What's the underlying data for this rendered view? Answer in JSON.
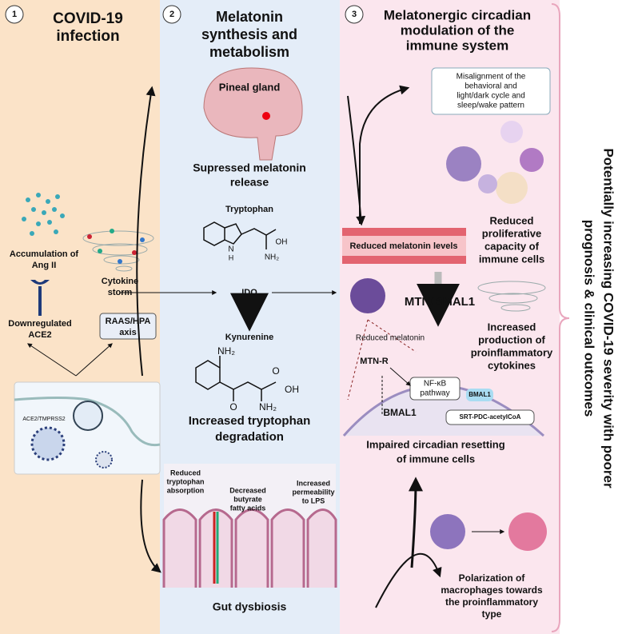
{
  "panel1": {
    "number": "1",
    "title": [
      "COVID-19",
      "infection"
    ],
    "ang": [
      "Accumulation of",
      "Ang II"
    ],
    "cytokine": [
      "Cytokine",
      "storm"
    ],
    "ace2": [
      "Downregulated",
      "ACE2"
    ],
    "raas": [
      "RAAS/HPA",
      "axis"
    ],
    "receptor": "ACE2/TMPRSS2"
  },
  "panel2": {
    "number": "2",
    "title": [
      "Melatonin",
      "synthesis and",
      "metabolism"
    ],
    "pineal": "Pineal gland",
    "suppressed": [
      "Supressed melatonin",
      "release"
    ],
    "tryptophan": "Tryptophan",
    "ido": "IDO",
    "kynurenine": "Kynurenine",
    "degradation": [
      "Increased tryptophan",
      "degradation"
    ],
    "chem": {
      "oh1": "OH",
      "nh2a": "NH₂",
      "nh": "N",
      "h": "H",
      "nh2b": "NH₂",
      "o": "O",
      "oh2": "OH",
      "nh2c": "NH₂",
      "o2": "O"
    },
    "absorption": [
      "Reduced",
      "tryptophan",
      "absorption"
    ],
    "butyrate": [
      "Decreased",
      "butyrate",
      "fatty acids"
    ],
    "permeability": [
      "Increased",
      "permeability",
      "to LPS"
    ],
    "gut": "Gut dysbiosis"
  },
  "panel3": {
    "number": "3",
    "title": [
      "Melatonergic circadian",
      "modulation of the",
      "immune system"
    ],
    "misalignment": [
      "Misalignment of the",
      "behavioral and",
      "light/dark cycle and",
      "sleep/wake pattern"
    ],
    "proliferative": [
      "Reduced",
      "proliferative",
      "capacity of",
      "immune cells"
    ],
    "levels": "Reduced melatonin levels",
    "mtn_bmal": "MTN/BMAL1",
    "production": [
      "Increased",
      "production of",
      "proinflammatory",
      "cytokines"
    ],
    "reduced": "Reduced melatonin",
    "mtnr": "MTN-R",
    "nfkb": [
      "NF-κB",
      "pathway"
    ],
    "bmal_box": "BMAL1",
    "bmal_gene": "BMAL1",
    "srt": "SRT-PDC-acetylCoA",
    "impaired": [
      "Impaired circadian resetting",
      "of immune cells"
    ],
    "polarization": [
      "Polarization of",
      "macrophages towards",
      "the proinflammatory",
      "type"
    ]
  },
  "outcome": [
    "Potentially increasing COVID-19 severity with poorer",
    "prognosis & clinical outcomes"
  ]
}
